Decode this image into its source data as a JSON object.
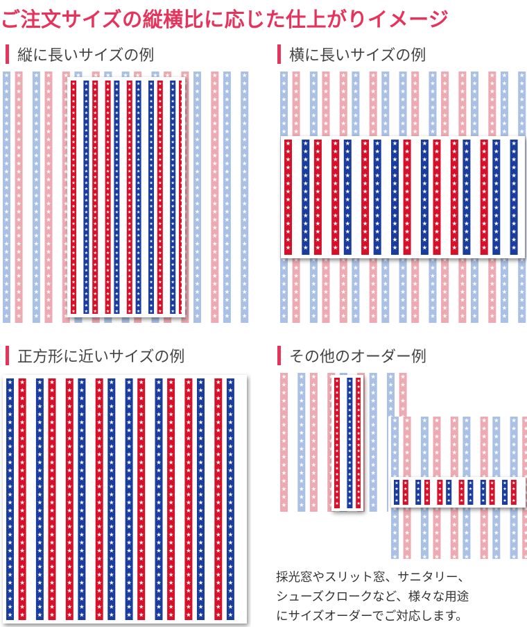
{
  "page": {
    "title": "ご注文サイズの縦横比に応じた仕上がりイメージ"
  },
  "sections": {
    "tall": {
      "heading": "縦に長いサイズの例"
    },
    "wide": {
      "heading": "横に長いサイズの例"
    },
    "square": {
      "heading": "正方形に近いサイズの例"
    },
    "other": {
      "heading": "その他のオーダー例",
      "note_lines": [
        "採光窓やスリット窓、サニタリー、",
        "シューズクロークなど、様々な用途",
        "にサイズオーダーでご対応します。"
      ]
    }
  },
  "colors": {
    "accent": "#e6335c",
    "stripe_red": "#d7102a",
    "stripe_blue": "#1a3c9c",
    "faded_red": "#eeaab2",
    "faded_blue": "#aac0e4",
    "star": "#ffffff"
  },
  "icons": {
    "pattern": "star-stripe-pattern"
  }
}
